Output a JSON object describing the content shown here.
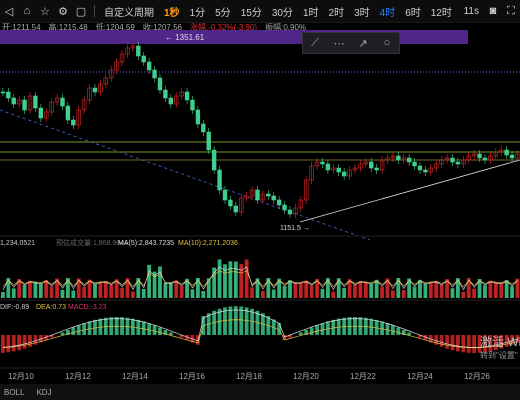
{
  "toolbar": {
    "period_label": "自定义周期",
    "intervals": [
      "1秒",
      "1分",
      "5分",
      "15分",
      "30分",
      "1时",
      "2时",
      "3时",
      "4时",
      "6时",
      "12时"
    ],
    "active_interval": "4时",
    "right_label": "11s"
  },
  "quote": {
    "open": "开:1211.54",
    "high": "高:1215.48",
    "low": "低:1204.59",
    "close": "收:1207.56",
    "change": "涨幅:-0.32%(-3.90)",
    "amplitude": "振幅:0.90%"
  },
  "price_labels": {
    "high_marker": "← 1351.61",
    "low_marker": "1151.5 →"
  },
  "volume_indicator": {
    "vol": "1,234.0521",
    "placeholder": "预估成交量:1,868.9644",
    "ma5": "MA(5):2,843.7235",
    "ma10": "MA(10):2,271.2036"
  },
  "macd_indicator": {
    "dif": "DIF:-0.89",
    "dea": "DEA:0.73",
    "macd": "MACD:-3.23"
  },
  "date_axis": [
    "12月10",
    "12月12",
    "12月14",
    "12月16",
    "12月18",
    "12月20",
    "12月22",
    "12月24",
    "12月26"
  ],
  "bottom_tabs": [
    "BOLL",
    "KDJ"
  ],
  "watermark": {
    "line1": "激活 Win",
    "line2": "转到\"设置\""
  },
  "colors": {
    "up": "#e02828",
    "down": "#3fcf8e",
    "accent": "#1e88ff",
    "purple": "#5a2a9a"
  }
}
